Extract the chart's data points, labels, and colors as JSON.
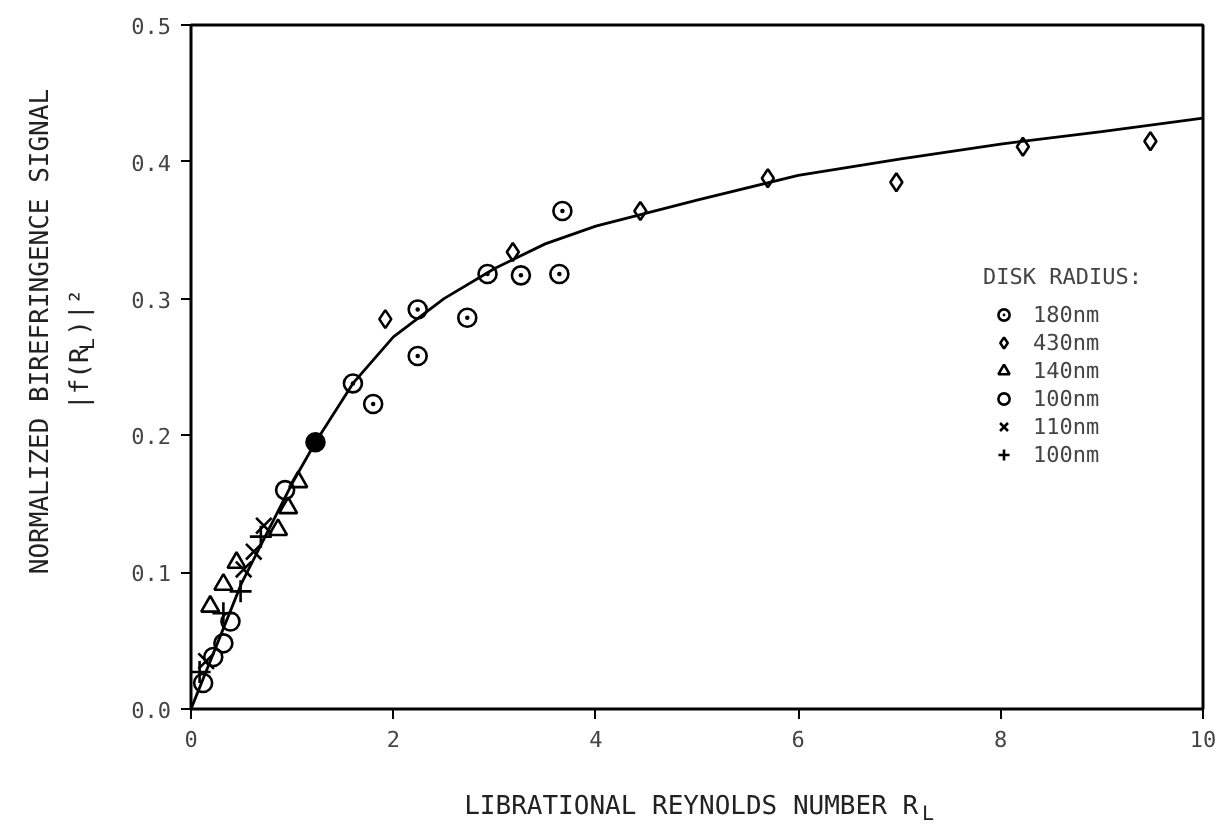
{
  "chart_data": {
    "type": "scatter",
    "xlabel": "LIBRATIONAL REYNOLDS NUMBER R$_{L}$",
    "ylabel": "NORMALIZED BIREFRINGENCE SIGNAL\n|f(R$_{L}$)|²",
    "legend_title": "DISK RADIUS:",
    "legend": "right",
    "grid": false,
    "xlim": [
      0,
      10
    ],
    "xticks": [
      0,
      2,
      4,
      6,
      8,
      10
    ],
    "ylim": [
      0,
      0.5
    ],
    "yticks": [
      {
        "value": 0,
        "label": "0.0"
      },
      {
        "value": 0.1,
        "label": "0.1"
      },
      {
        "value": 0.2,
        "label": "0.2"
      },
      {
        "value": 0.3,
        "label": "0.3"
      },
      {
        "value": 0.4,
        "label": "0.4"
      },
      {
        "value": 0.5,
        "label": "0.5"
      }
    ],
    "series": [
      {
        "name": "180nm",
        "color": "#000000",
        "marker": "circle_dot",
        "x": [
          1.6,
          1.8,
          2.24,
          2.24,
          2.73,
          2.93,
          3.26,
          3.64,
          3.67
        ],
        "values": [
          0.238,
          0.223,
          0.292,
          0.258,
          0.286,
          0.318,
          0.317,
          0.318,
          0.364
        ]
      },
      {
        "name": "430nm",
        "color": "#000000",
        "marker": "diamond",
        "x": [
          1.92,
          3.18,
          4.44,
          5.7,
          6.97,
          8.22,
          9.48
        ],
        "values": [
          0.285,
          0.334,
          0.364,
          0.388,
          0.385,
          0.411,
          0.415
        ]
      },
      {
        "name": "140nm",
        "color": "#000000",
        "marker": "triangle",
        "x": [
          0.19,
          0.32,
          0.45,
          0.86,
          0.96,
          1.06
        ],
        "values": [
          0.075,
          0.091,
          0.107,
          0.131,
          0.147,
          0.166
        ]
      },
      {
        "name": "100nm",
        "color": "#000000",
        "marker": "circle",
        "x": [
          0.12,
          0.22,
          0.32,
          0.39,
          0.93
        ],
        "values": [
          0.019,
          0.038,
          0.048,
          0.064,
          0.16
        ]
      },
      {
        "name": "110nm",
        "color": "#000000",
        "marker": "x",
        "x": [
          0.15,
          0.52,
          0.62,
          0.72
        ],
        "values": [
          0.035,
          0.102,
          0.115,
          0.134
        ]
      },
      {
        "name": "100nm",
        "color": "#000000",
        "marker": "cross",
        "x": [
          0.085,
          0.32,
          0.49,
          0.69
        ],
        "values": [
          0.027,
          0.07,
          0.086,
          0.126
        ]
      },
      {
        "color": "#000000",
        "marker": "filled_circle",
        "x": [
          1.23
        ],
        "values": [
          0.195
        ]
      },
      {
        "type": "line",
        "color": "#000000",
        "marker": "none",
        "x": [
          0,
          0.5,
          1,
          1.23,
          1.6,
          2,
          2.5,
          3,
          3.5,
          4,
          5,
          6,
          7,
          8,
          9,
          10
        ],
        "values": [
          0,
          0.092,
          0.165,
          0.195,
          0.238,
          0.272,
          0.3,
          0.322,
          0.34,
          0.353,
          0.372,
          0.39,
          0.402,
          0.413,
          0.422,
          0.432
        ]
      }
    ]
  }
}
